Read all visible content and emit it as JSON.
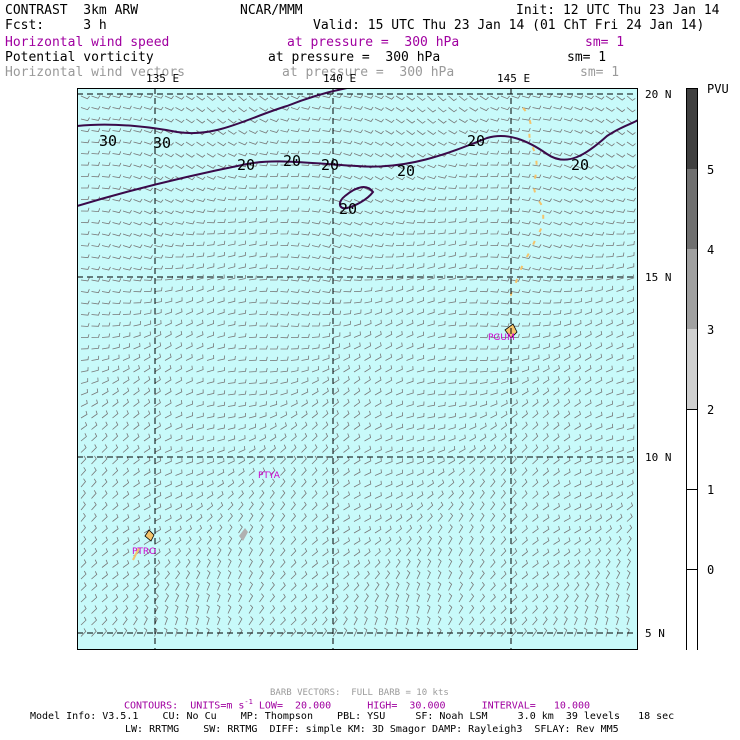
{
  "header": {
    "line1_left": "CONTRAST  3km ARW",
    "line1_mid": "NCAR/MMM",
    "line1_right": "Init: 12 UTC Thu 23 Jan 14",
    "line2_left": "Fcst:     3 h",
    "line2_right": "Valid: 15 UTC Thu 23 Jan 14 (01 ChT Fri 24 Jan 14)",
    "field1_name": "Horizontal wind speed",
    "field1_level": "at pressure =  300 hPa",
    "field1_sm": "sm= 1",
    "field2_name": "Potential vorticity",
    "field2_level": "at pressure =  300 hPa",
    "field2_sm": "sm= 1",
    "field3_name": "Horizontal wind vectors",
    "field3_level": "at pressure =  300 hPa",
    "field3_sm": "sm= 1"
  },
  "map": {
    "lon_labels": [
      "135 E",
      "140 E",
      "145 E"
    ],
    "lat_labels": [
      "20 N",
      "15 N",
      "10 N",
      "5 N"
    ],
    "stations": [
      "PGUM",
      "PTYA",
      "PTRO"
    ],
    "contour_labels": [
      "30",
      "30",
      "20",
      "20",
      "20",
      "20",
      "20",
      "20",
      "20"
    ],
    "colors": {
      "ocean": "#c8fafa",
      "contour": "#3a0a4a",
      "barb": "#777777",
      "station": "#cc00cc",
      "land": "#f4c46c"
    }
  },
  "scale": {
    "unit": "PVU",
    "ticks": [
      "5",
      "4",
      "3",
      "2",
      "1",
      "0"
    ],
    "colors": [
      "#404040",
      "#707070",
      "#a0a0a0",
      "#d0d0d0",
      "#ffffff",
      "#ffffff",
      "#ffffff"
    ]
  },
  "footer": {
    "barb_note": "BARB VECTORS:  FULL BARB = 10 kts",
    "contours": "CONTOURS:  UNITS=m s",
    "contours_sup": "-1",
    "contours_rest": " LOW=  20.000      HIGH=  30.000      INTERVAL=   10.000",
    "model_info": "Model Info: V3.5.1    CU: No Cu    MP: Thompson    PBL: YSU     SF: Noah LSM     3.0 km  39 levels   18 sec",
    "model_info2": "LW: RRTMG    SW: RRTMG  DIFF: simple KM: 3D Smagor DAMP: Rayleigh3  SFLAY: Rev MM5"
  }
}
